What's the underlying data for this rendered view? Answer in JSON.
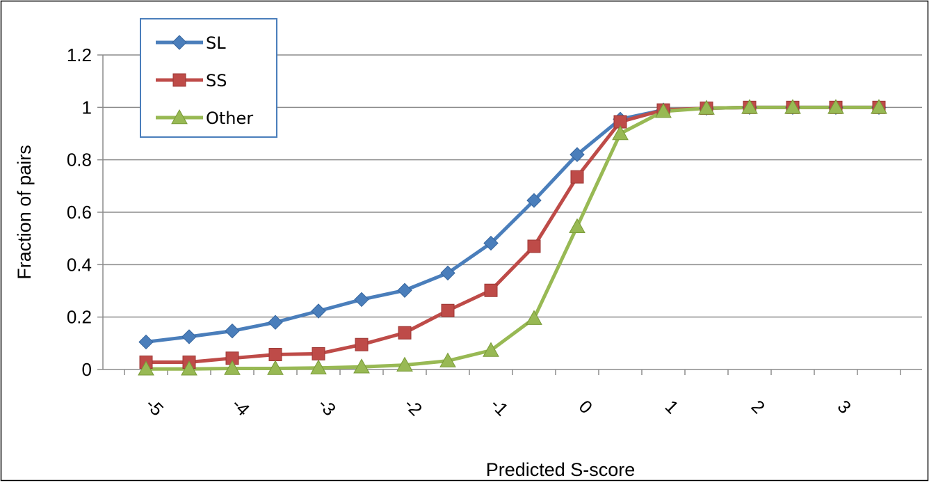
{
  "chart_data": {
    "type": "line",
    "title": "",
    "xlabel": "Predicted S-score",
    "ylabel": "Fraction of pairs",
    "x": [
      -5,
      -4.5,
      -4,
      -3.5,
      -3,
      -2.5,
      -2,
      -1.5,
      -1,
      -0.5,
      0,
      0.5,
      1,
      1.5,
      2,
      2.5,
      3,
      3.5
    ],
    "x_tick_labels": [
      "-5",
      "-4",
      "-3",
      "-2",
      "-1",
      "0",
      "1",
      "2",
      "3"
    ],
    "x_tick_values": [
      -5,
      -4,
      -3,
      -2,
      -1,
      0,
      1,
      2,
      3
    ],
    "y_tick_labels": [
      "0",
      "0.2",
      "0.4",
      "0.6",
      "0.8",
      "1",
      "1.2"
    ],
    "ylim": [
      0,
      1.2
    ],
    "grid": "horizontal",
    "legend_position": "top-left",
    "series": [
      {
        "name": "SL",
        "marker": "diamond",
        "color": "#4a7ebb",
        "values": [
          0.105,
          0.125,
          0.147,
          0.18,
          0.223,
          0.267,
          0.302,
          0.368,
          0.482,
          0.645,
          0.82,
          0.955,
          0.99,
          0.997,
          1.0,
          1.0,
          1.0,
          1.0
        ]
      },
      {
        "name": "SS",
        "marker": "square",
        "color": "#be4b48",
        "values": [
          0.028,
          0.028,
          0.043,
          0.057,
          0.06,
          0.095,
          0.14,
          0.225,
          0.302,
          0.47,
          0.735,
          0.945,
          0.99,
          0.997,
          1.0,
          1.0,
          1.0,
          1.0
        ]
      },
      {
        "name": "Other",
        "marker": "triangle",
        "color": "#98b954",
        "values": [
          0.002,
          0.002,
          0.004,
          0.004,
          0.006,
          0.01,
          0.017,
          0.033,
          0.073,
          0.195,
          0.545,
          0.9,
          0.985,
          0.997,
          1.0,
          1.0,
          1.0,
          1.0
        ]
      }
    ]
  }
}
